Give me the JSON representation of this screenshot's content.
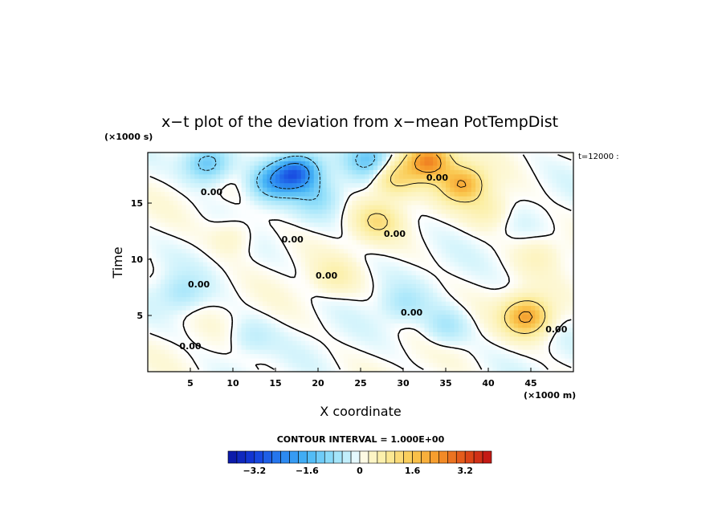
{
  "chart_data": {
    "type": "heatmap",
    "title": "x−t plot of the deviation from x−mean PotTempDist",
    "xlabel": "X coordinate",
    "ylabel": "Time",
    "x_unit": "(×1000 m)",
    "y_unit": "(×1000 s)",
    "x_ticks": [
      "5",
      "10",
      "15",
      "20",
      "25",
      "30",
      "35",
      "40",
      "45"
    ],
    "y_ticks": [
      "5",
      "10",
      "15"
    ],
    "xlim": [
      0,
      50
    ],
    "ylim": [
      0,
      19.5
    ],
    "time_label": "t=12000 :",
    "contour_interval": "CONTOUR INTERVAL = 1.000E+00",
    "contour_labels": [
      "0.00",
      "0.00",
      "0.00",
      "0.00",
      "0.00",
      "0.00",
      "0.00",
      "0.00",
      "0.00"
    ],
    "colorbar_ticks": [
      "−3.2",
      "−1.6",
      "0",
      "1.6",
      "3.2"
    ],
    "colorbar_range": [
      -4.0,
      4.0
    ],
    "colorbar_levels": 30,
    "features": [
      {
        "x": 7,
        "t": 18.5,
        "value": -1.4
      },
      {
        "x": 14.5,
        "t": 16.8,
        "value": -1.4
      },
      {
        "x": 17.5,
        "t": 17.7,
        "value": -2.6
      },
      {
        "x": 26,
        "t": 18.9,
        "value": -1.2
      },
      {
        "x": 33,
        "t": 18.8,
        "value": 2.6
      },
      {
        "x": 37,
        "t": 16.7,
        "value": 2.0
      },
      {
        "x": 44.5,
        "t": 4.9,
        "value": 2.2
      },
      {
        "x": 29,
        "t": 17.2,
        "value": 1.2
      },
      {
        "x": 27,
        "t": 13.4,
        "value": 1.0
      },
      {
        "x": 40,
        "t": 14.5,
        "value": 0.6
      },
      {
        "x": 4,
        "t": 7.0,
        "value": -0.6
      },
      {
        "x": 20,
        "t": 15.5,
        "value": -0.7
      },
      {
        "x": 30,
        "t": 6.0,
        "value": -0.5
      },
      {
        "x": 35,
        "t": 4.0,
        "value": -0.6
      },
      {
        "x": 12,
        "t": 3.0,
        "value": -0.4
      },
      {
        "x": 22,
        "t": 8.5,
        "value": 0.5
      },
      {
        "x": 10,
        "t": 12.0,
        "value": 0.4
      },
      {
        "x": 46,
        "t": 10.5,
        "value": 0.4
      }
    ]
  },
  "colors": {
    "cold": "#0a1fa6",
    "neutral": "#ffffff",
    "warm": "#c8141b"
  }
}
